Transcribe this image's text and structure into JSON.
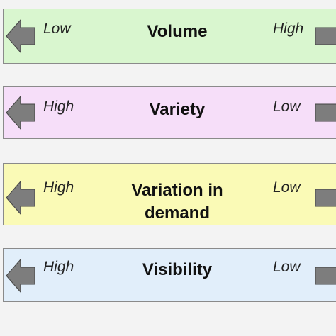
{
  "bands": [
    {
      "title": "Volume",
      "left": "Low",
      "right": "High"
    },
    {
      "title": "Variety",
      "left": "High",
      "right": "Low"
    },
    {
      "title": "Variation in demand",
      "left": "High",
      "right": "Low"
    },
    {
      "title": "Visibility",
      "left": "High",
      "right": "Low"
    }
  ]
}
